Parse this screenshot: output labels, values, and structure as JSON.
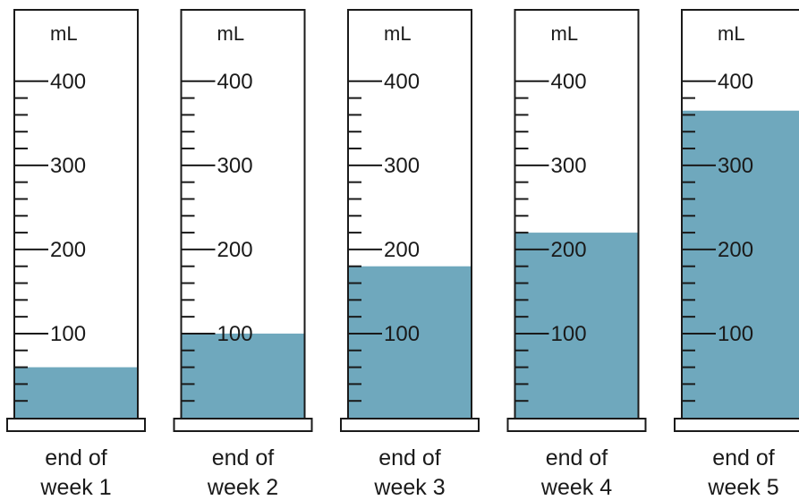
{
  "unit": "mL",
  "scale": {
    "min": 0,
    "max": 400,
    "labeled_ticks": [
      100,
      200,
      300,
      400
    ],
    "minor_step": 20
  },
  "colors": {
    "water": "#6fa8bd",
    "outline": "#1a1a1a"
  },
  "cylinders": [
    {
      "caption_line1": "end of",
      "caption_line2": "week 1",
      "volume_ml": 60
    },
    {
      "caption_line1": "end of",
      "caption_line2": "week 2",
      "volume_ml": 100
    },
    {
      "caption_line1": "end of",
      "caption_line2": "week 3",
      "volume_ml": 180
    },
    {
      "caption_line1": "end of",
      "caption_line2": "week 4",
      "volume_ml": 220
    },
    {
      "caption_line1": "end of",
      "caption_line2": "week 5",
      "volume_ml": 365
    }
  ]
}
